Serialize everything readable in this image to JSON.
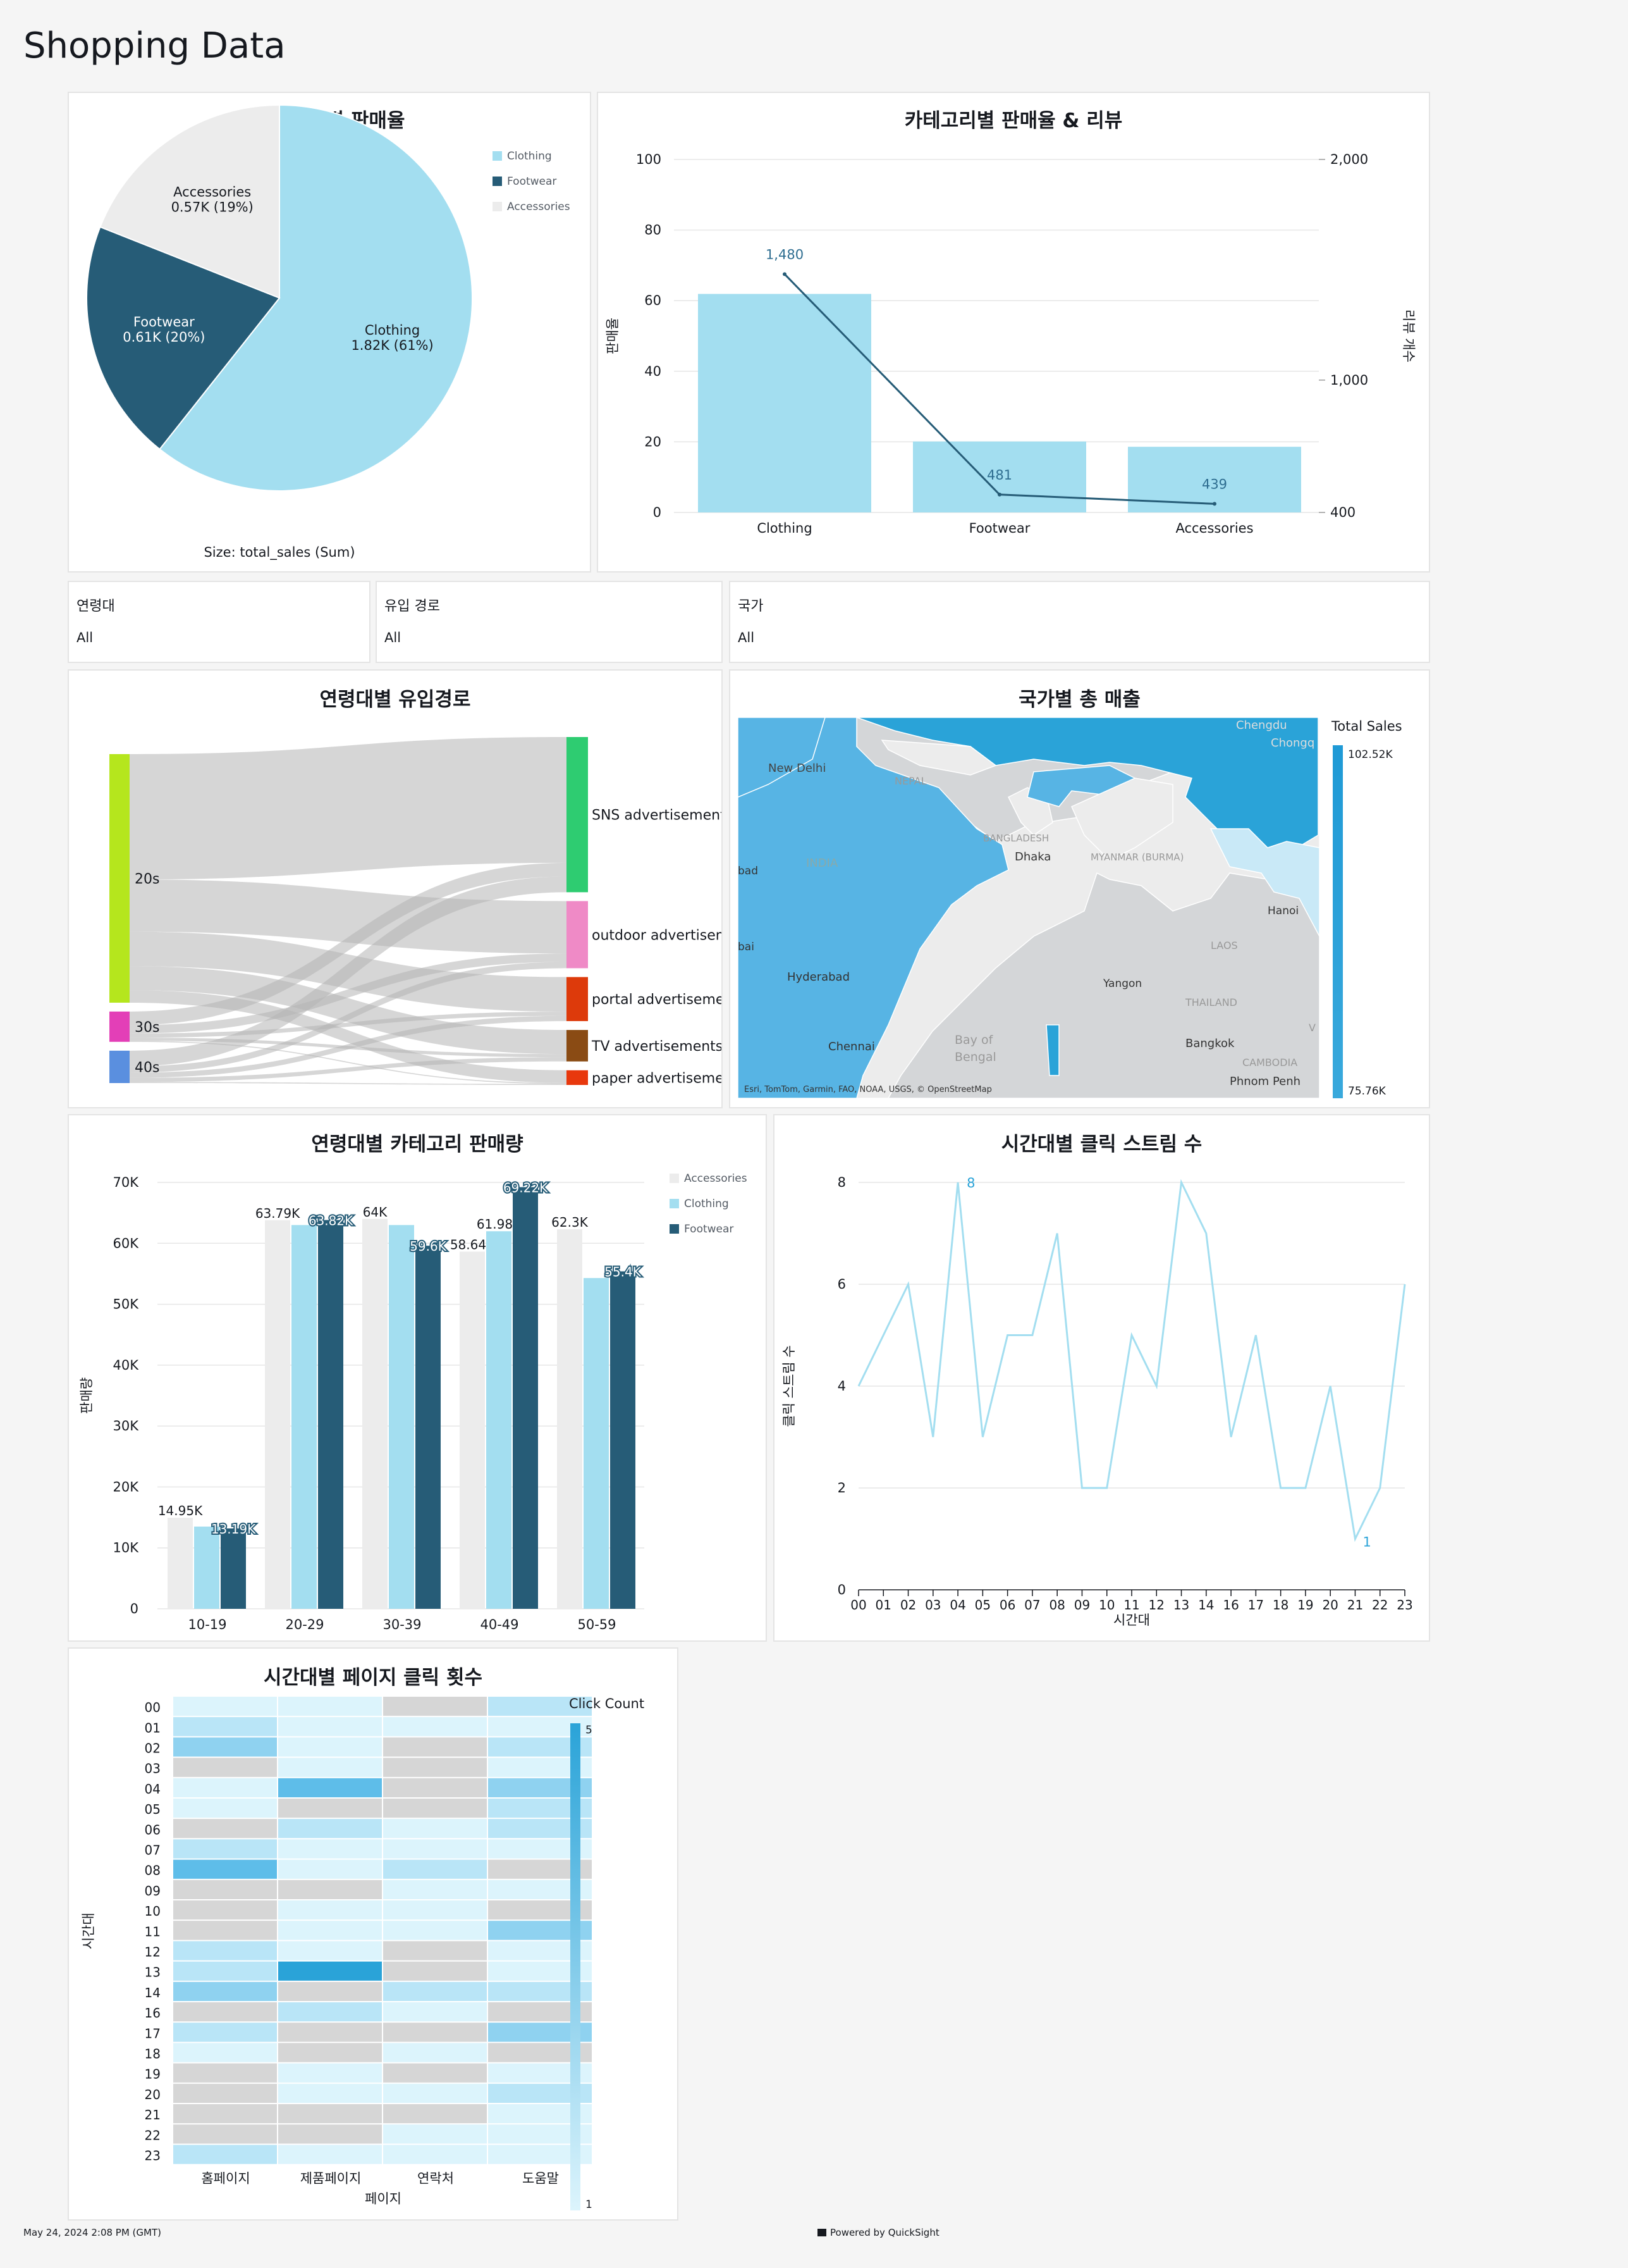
{
  "app": {
    "title": "Shopping Data"
  },
  "footer": {
    "timestamp": "May 24, 2024 2:08 PM (GMT)",
    "powered": "Powered by QuickSight"
  },
  "colors": {
    "clothing": "#a3def0",
    "footwear": "#265c77",
    "accessories": "#ececec",
    "accent": "#2aa3d8"
  },
  "filters": [
    {
      "label": "연령대",
      "value": "All"
    },
    {
      "label": "유입 경로",
      "value": "All"
    },
    {
      "label": "국가",
      "value": "All"
    }
  ],
  "pie": {
    "title": "카테고리별 판매율",
    "size_note": "Size: total_sales (Sum)",
    "legend": [
      "Clothing",
      "Footwear",
      "Accessories"
    ]
  },
  "combo": {
    "title": "카테고리별 판매율 & 리뷰",
    "ylabel_left": "판매율",
    "ylabel_right": "리뷰 개수"
  },
  "sankey": {
    "title": "연령대별 유입경로",
    "sources": [
      "20s",
      "30s",
      "40s"
    ],
    "targets": [
      "SNS advertisements",
      "outdoor advertisem",
      "portal advertisemer",
      "TV advertisements",
      "paper advertisemen"
    ]
  },
  "map": {
    "title": "국가별 총 매출",
    "legend_title": "Total Sales",
    "legend_max": "102.52K",
    "legend_min": "75.76K",
    "attribution": "Esri, TomTom, Garmin, FAO, NOAA, USGS, © OpenStreetMap",
    "places": [
      "New Delhi",
      "NEPAL",
      "INDIA",
      "BANGLADESH",
      "Dhaka",
      "MYANMAR (BURMA)",
      "Hyderabad",
      "Chennai",
      "Bay of",
      "Bengal",
      "Yangon",
      "THAILAND",
      "LAOS",
      "Hanoi",
      "Bangkok",
      "CAMBODIA",
      "Phnom Penh",
      "Chengdu",
      "Chongq",
      "bad",
      "bai",
      "V"
    ]
  },
  "grouped": {
    "title": "연령대별 카테고리 판매량",
    "ylabel": "판매량",
    "legend": [
      "Accessories",
      "Clothing",
      "Footwear"
    ]
  },
  "line": {
    "title": "시간대별 클릭 스트림 수",
    "ylabel": "클릭 스트림 수",
    "xlabel": "시간대"
  },
  "heatmap": {
    "title": "시간대별 페이지 클릭 횟수",
    "legend_title": "Click Count",
    "legend_max": "5",
    "legend_min": "1",
    "xlabel": "페이지",
    "ylabel": "시간대"
  },
  "chart_data": [
    {
      "type": "pie",
      "title": "카테고리별 판매율",
      "categories": [
        "Clothing",
        "Footwear",
        "Accessories"
      ],
      "values": [
        1.82,
        0.61,
        0.57
      ],
      "labels": [
        "1.82K (61%)",
        "0.61K (20%)",
        "0.57K (19%)"
      ],
      "percent": [
        61,
        20,
        19
      ],
      "legend": "top-right"
    },
    {
      "type": "bar",
      "title": "카테고리별 판매율 & 리뷰",
      "categories": [
        "Clothing",
        "Footwear",
        "Accessories"
      ],
      "series": [
        {
          "name": "판매율",
          "type": "bar",
          "values": [
            61.9,
            20.1,
            18.6
          ]
        },
        {
          "name": "리뷰 개수",
          "type": "line",
          "values": [
            1480,
            481,
            439
          ]
        }
      ],
      "ylabel": "판매율",
      "ylim": [
        0,
        100
      ],
      "yticks": [
        0,
        20,
        40,
        60,
        80,
        100
      ],
      "y2label": "리뷰 개수",
      "y2lim": [
        400,
        2000
      ],
      "y2ticks": [
        "400",
        "1,000",
        "2,000"
      ],
      "data_labels": [
        "1,480",
        "481",
        "439"
      ]
    },
    {
      "type": "sankey",
      "title": "연령대별 유입경로",
      "sources": [
        "20s",
        "30s",
        "40s"
      ],
      "targets": [
        "SNS advertisements",
        "outdoor advertisem",
        "portal advertisemer",
        "TV advertisements",
        "paper advertisemen"
      ],
      "flows": [
        [
          12,
          5,
          3.3,
          2.3,
          1.2
        ],
        [
          1.3,
          0.8,
          0.4,
          0.3,
          0.1
        ],
        [
          1.5,
          0.6,
          0.5,
          0.4,
          0.1
        ]
      ]
    },
    {
      "type": "bar",
      "title": "연령대별 카테고리 판매량",
      "categories": [
        "10-19",
        "20-29",
        "30-39",
        "40-49",
        "50-59"
      ],
      "series": [
        {
          "name": "Accessories",
          "values": [
            14.95,
            63.79,
            64,
            58.64,
            62.3
          ]
        },
        {
          "name": "Clothing",
          "values": [
            13.5,
            63.0,
            63.0,
            61.98,
            54.3
          ]
        },
        {
          "name": "Footwear",
          "values": [
            13.19,
            63.82,
            59.6,
            69.22,
            55.4
          ]
        }
      ],
      "data_labels": {
        "Accessories": [
          "14.95K",
          "63.79K",
          "64K",
          "58.64K",
          "62.3K"
        ],
        "Footwear": [
          "13.19K",
          "63.82K",
          "59.6K",
          "69.22K",
          "55.4K"
        ],
        "Clothing": [
          "",
          "",
          "",
          "61.98K",
          ""
        ]
      },
      "ylabel": "판매량",
      "ylim": [
        0,
        70
      ],
      "yticks": [
        "0",
        "10K",
        "20K",
        "30K",
        "40K",
        "50K",
        "60K",
        "70K"
      ],
      "legend": "top-right"
    },
    {
      "type": "line",
      "title": "시간대별 클릭 스트림 수",
      "x": [
        "00",
        "01",
        "02",
        "03",
        "04",
        "05",
        "06",
        "07",
        "08",
        "09",
        "10",
        "11",
        "12",
        "13",
        "14",
        "16",
        "17",
        "18",
        "19",
        "20",
        "21",
        "22",
        "23"
      ],
      "values": [
        4,
        5,
        6,
        3,
        8,
        3,
        5,
        5,
        7,
        2,
        2,
        5,
        4,
        8,
        7,
        3,
        5,
        2,
        2,
        4,
        1,
        2,
        6
      ],
      "data_labels": {
        "max": "8",
        "min": "1"
      },
      "ylabel": "클릭 스트림 수",
      "xlabel": "시간대",
      "ylim": [
        0,
        8
      ],
      "yticks": [
        0,
        2,
        4,
        6,
        8
      ]
    },
    {
      "type": "heatmap",
      "title": "시간대별 페이지 클릭 횟수",
      "x": [
        "홈페이지",
        "제품페이지",
        "연락처",
        "도움말"
      ],
      "y": [
        "00",
        "01",
        "02",
        "03",
        "04",
        "05",
        "06",
        "07",
        "08",
        "09",
        "10",
        "11",
        "12",
        "13",
        "14",
        "16",
        "17",
        "18",
        "19",
        "20",
        "21",
        "22",
        "23"
      ],
      "values": [
        [
          1,
          1,
          null,
          2
        ],
        [
          2,
          1,
          1,
          1
        ],
        [
          3,
          1,
          null,
          2
        ],
        [
          null,
          1,
          null,
          1
        ],
        [
          1,
          4,
          null,
          3
        ],
        [
          1,
          null,
          null,
          2
        ],
        [
          null,
          2,
          1,
          2
        ],
        [
          2,
          1,
          1,
          1
        ],
        [
          4,
          1,
          2,
          null
        ],
        [
          null,
          null,
          1,
          1
        ],
        [
          null,
          1,
          1,
          null
        ],
        [
          null,
          1,
          1,
          3
        ],
        [
          2,
          1,
          null,
          1
        ],
        [
          2,
          5,
          null,
          1
        ],
        [
          3,
          null,
          2,
          2
        ],
        [
          null,
          2,
          1,
          null
        ],
        [
          2,
          null,
          null,
          3
        ],
        [
          1,
          null,
          1,
          null
        ],
        [
          null,
          1,
          null,
          1
        ],
        [
          null,
          1,
          1,
          2
        ],
        [
          null,
          null,
          null,
          1
        ],
        [
          null,
          null,
          1,
          1
        ],
        [
          2,
          1,
          1,
          1
        ]
      ],
      "zlim": [
        1,
        5
      ],
      "xlabel": "페이지",
      "ylabel": "시간대"
    }
  ]
}
